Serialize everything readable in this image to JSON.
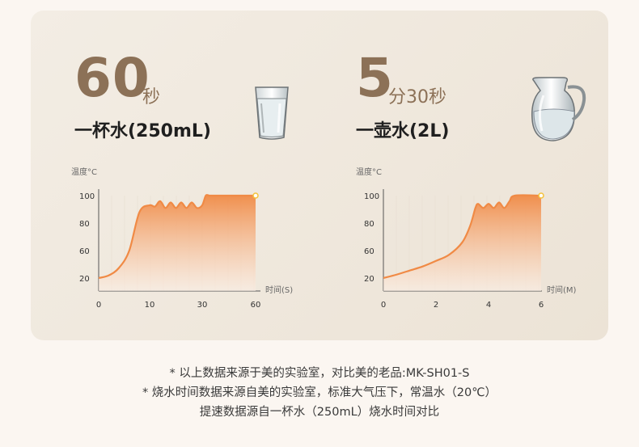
{
  "panels": [
    {
      "number": "60",
      "number_unit": "秒",
      "subtitle": "一杯水(250mL)",
      "icon": "water-glass-icon"
    },
    {
      "number": "5",
      "number_unit": "分30秒",
      "subtitle": "一壶水(2L)",
      "icon": "water-jug-icon"
    }
  ],
  "colors": {
    "accent_brown": "#8c7157",
    "curve": "#f08a45",
    "fill_top": "#f08a45",
    "fill_bottom": "#fbeee4",
    "endpoint": "#f5c23b"
  },
  "footnotes": [
    "* 以上数据来源于美的实验室，对比美的老品:MK-SH01-S",
    "* 烧水时间数据来源自美的实验室，标准大气压下，常温水（20℃）",
    "提速数据源自一杯水（250mL）烧水时间对比"
  ],
  "chart_data": [
    {
      "type": "area",
      "ylabel": "温度°C",
      "xlabel": "时间(S)",
      "y_ticks": [
        "100",
        "80",
        "60",
        "20"
      ],
      "x_ticks": [
        "0",
        "10",
        "30",
        "60"
      ],
      "x_tick_values": [
        0,
        10,
        30,
        60
      ],
      "x": [
        0,
        2,
        4,
        6,
        8,
        10,
        12,
        14,
        16,
        18,
        20,
        22,
        24,
        26,
        28,
        30,
        32,
        34,
        36,
        40,
        50,
        60
      ],
      "y": [
        20,
        24,
        35,
        60,
        88,
        93,
        92,
        96,
        91,
        95,
        91,
        95,
        91,
        95,
        91,
        93,
        100,
        100,
        100,
        100,
        100,
        100
      ],
      "xlim": [
        0,
        60
      ],
      "ylim": [
        0,
        100
      ]
    },
    {
      "type": "area",
      "ylabel": "温度°C",
      "xlabel": "时间(M)",
      "y_ticks": [
        "100",
        "80",
        "60",
        "20"
      ],
      "x_ticks": [
        "0",
        "2",
        "4",
        "6"
      ],
      "x_tick_values": [
        0,
        2,
        4,
        6
      ],
      "x": [
        0,
        0.5,
        1,
        1.5,
        2,
        2.5,
        3,
        3.3,
        3.5,
        3.6,
        3.8,
        4.0,
        4.2,
        4.4,
        4.6,
        4.8,
        5.0,
        6.0
      ],
      "y": [
        20,
        25,
        31,
        37,
        45,
        54,
        66,
        78,
        91,
        94,
        91,
        94,
        91,
        95,
        91,
        96,
        100,
        100
      ],
      "xlim": [
        0,
        6
      ],
      "ylim": [
        0,
        100
      ]
    }
  ]
}
